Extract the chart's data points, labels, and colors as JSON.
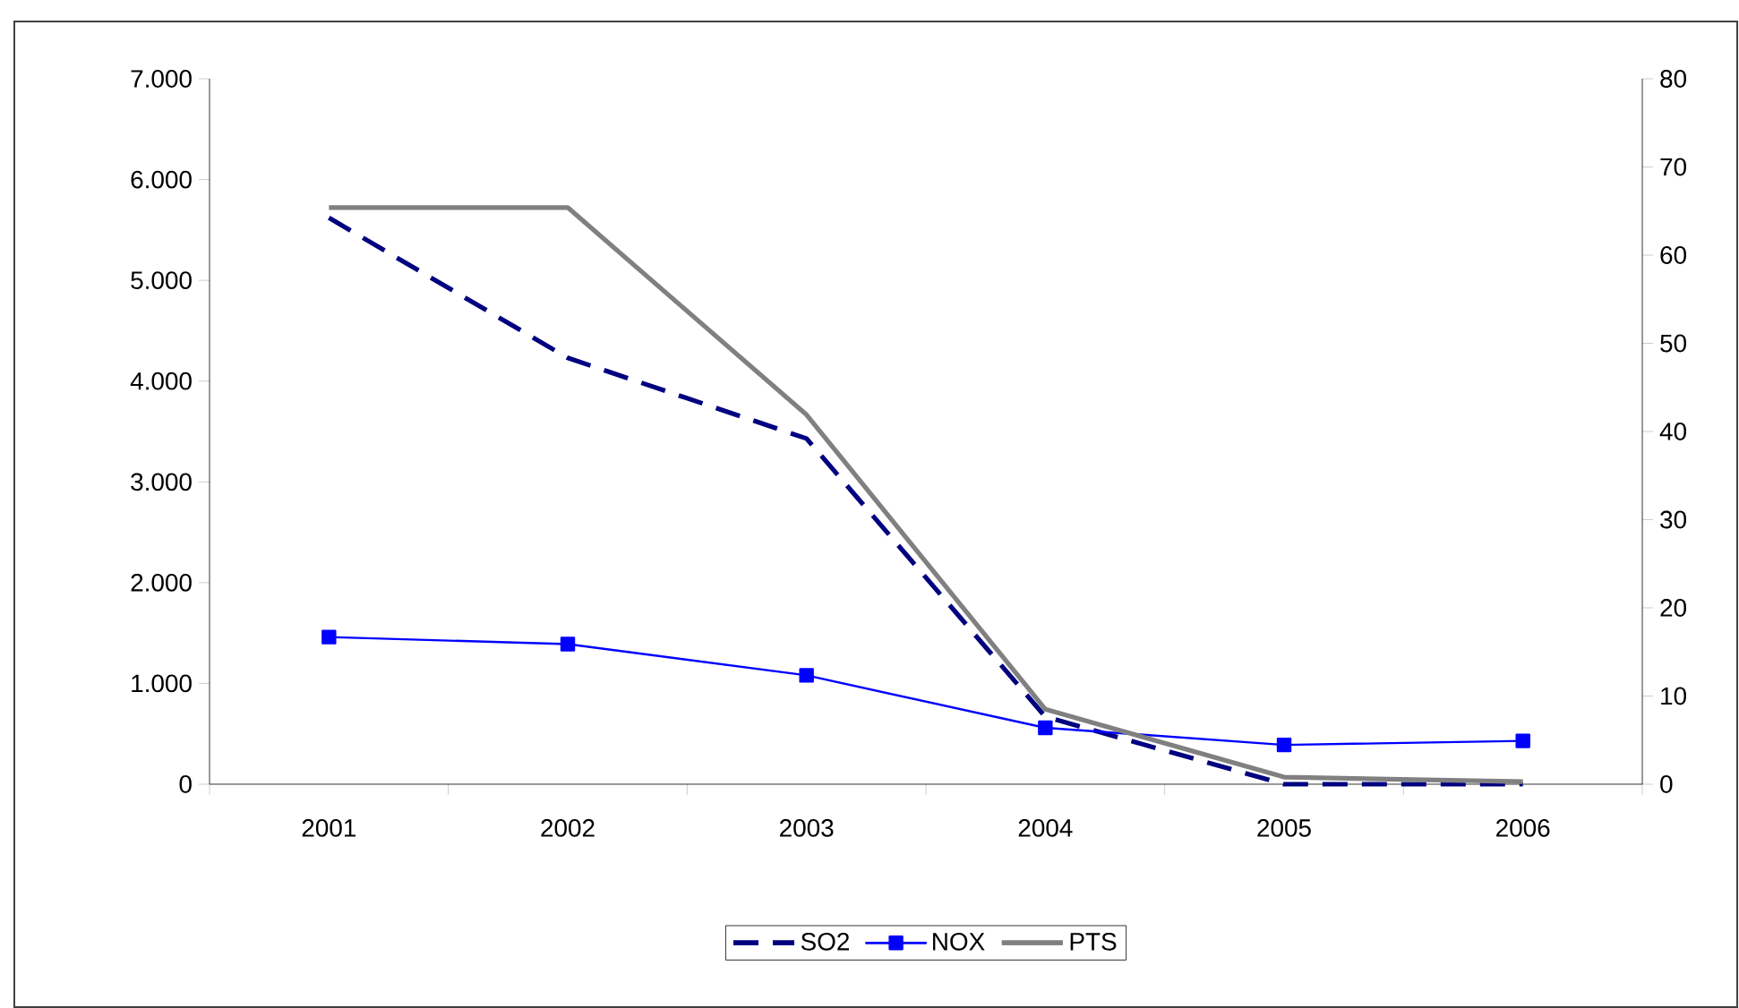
{
  "chart_data": {
    "type": "line",
    "categories": [
      "2001",
      "2002",
      "2003",
      "2004",
      "2005",
      "2006"
    ],
    "series": [
      {
        "name": "SO2",
        "color": "#000080",
        "line_style": "dashed",
        "marker": "none",
        "values": [
          5620,
          4230,
          3430,
          670,
          0,
          0
        ]
      },
      {
        "name": "NOX",
        "color": "#0000ff",
        "line_style": "solid",
        "marker": "square",
        "values": [
          1460,
          1390,
          1080,
          560,
          390,
          430
        ]
      },
      {
        "name": "PTS",
        "color": "#808080",
        "line_style": "solid",
        "marker": "none",
        "axis": "y2",
        "values": [
          65.4,
          65.4,
          41.9,
          8.5,
          0.8,
          0.3
        ]
      }
    ],
    "ylim": [
      0,
      7000
    ],
    "yticks": [
      0,
      {
        "value": 1000,
        "label": "1.000"
      },
      {
        "value": 2000,
        "label": "2.000"
      },
      {
        "value": 3000,
        "label": "3.000"
      },
      {
        "value": 4000,
        "label": "4.000"
      },
      {
        "value": 5000,
        "label": "5.000"
      },
      {
        "value": 6000,
        "label": "6.000"
      },
      {
        "value": 7000,
        "label": "7.000"
      }
    ],
    "y2lim": [
      0,
      80
    ],
    "y2ticks": [
      0,
      10,
      20,
      30,
      40,
      50,
      60,
      70,
      80
    ],
    "grid": false,
    "legend": "bottom"
  }
}
